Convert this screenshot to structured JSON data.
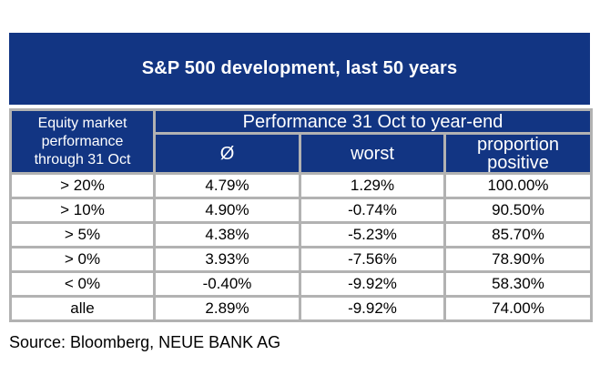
{
  "title": "S&P 500 development, last 50 years",
  "chart_data": {
    "type": "table",
    "title": "S&P 500 development, last 50 years",
    "row_header": "Equity market performance through 31 Oct",
    "row_header_lines": [
      "Equity market",
      "performance",
      "through 31 Oct"
    ],
    "group_header": "Performance 31 Oct to year-end",
    "columns": [
      "Ø",
      "worst",
      "proportion positive"
    ],
    "rows": [
      {
        "label": "> 20%",
        "avg": "4.79%",
        "worst": "1.29%",
        "proportion_positive": "100.00%"
      },
      {
        "label": "> 10%",
        "avg": "4.90%",
        "worst": "-0.74%",
        "proportion_positive": "90.50%"
      },
      {
        "label": "> 5%",
        "avg": "4.38%",
        "worst": "-5.23%",
        "proportion_positive": "85.70%"
      },
      {
        "label": "> 0%",
        "avg": "3.93%",
        "worst": "-7.56%",
        "proportion_positive": "78.90%"
      },
      {
        "label": "< 0%",
        "avg": "-0.40%",
        "worst": "-9.92%",
        "proportion_positive": "58.30%"
      },
      {
        "label": "alle",
        "avg": "2.89%",
        "worst": "-9.92%",
        "proportion_positive": "74.00%"
      }
    ],
    "source": "Source: Bloomberg, NEUE BANK AG"
  },
  "colors": {
    "header_blue": "#123583",
    "border_gray": "#b2b2b2",
    "header_text": "#ffffff",
    "body_text": "#000000",
    "background": "#ffffff"
  }
}
